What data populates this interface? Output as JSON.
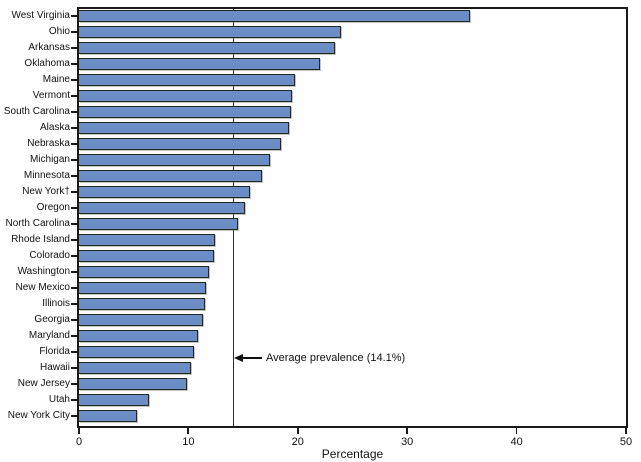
{
  "chart_data": {
    "type": "bar",
    "orientation": "horizontal",
    "title": "",
    "xlabel": "Percentage",
    "ylabel": "",
    "xlim": [
      0,
      50
    ],
    "x_ticks": [
      0,
      10,
      20,
      30,
      40,
      50
    ],
    "grid": false,
    "legend": false,
    "categories": [
      "West Virginia",
      "Ohio",
      "Arkansas",
      "Oklahoma",
      "Maine",
      "Vermont",
      "South Carolina",
      "Alaska",
      "Nebraska",
      "Michigan",
      "Minnesota",
      "New York†",
      "Oregon",
      "North Carolina",
      "Rhode Island",
      "Colorado",
      "Washington",
      "New Mexico",
      "Illinois",
      "Georgia",
      "Maryland",
      "Florida",
      "Hawaii",
      "New Jersey",
      "Utah",
      "New York City"
    ],
    "values": [
      35.7,
      23.9,
      23.4,
      22.0,
      19.7,
      19.5,
      19.4,
      19.2,
      18.5,
      17.5,
      16.7,
      15.6,
      15.2,
      14.5,
      12.4,
      12.3,
      11.9,
      11.6,
      11.5,
      11.3,
      10.9,
      10.5,
      10.2,
      9.9,
      6.4,
      5.3
    ],
    "average_line": {
      "value": 14.1,
      "label": "Average prevalence (14.1%)"
    },
    "colors": {
      "bar_fill": "#6a8dc4",
      "bar_border": "#262626",
      "axis": "#1a1a1a"
    }
  }
}
